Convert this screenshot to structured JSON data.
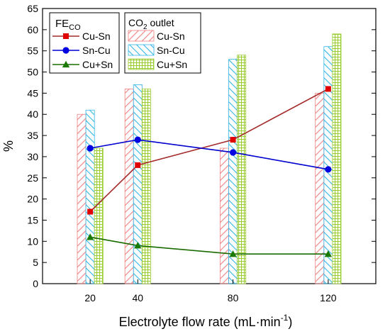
{
  "chart_data": {
    "type": "bar",
    "xlabel_main": "Electrolyte flow rate (mL·min",
    "xlabel_sup": "-1",
    "xlabel_close": ")",
    "ylabel": "%",
    "xlim": [
      0,
      140
    ],
    "ylim": [
      0,
      65
    ],
    "yticks": [
      0,
      5,
      10,
      15,
      20,
      25,
      30,
      35,
      40,
      45,
      50,
      55,
      60,
      65
    ],
    "categories": [
      "20",
      "40",
      "80",
      "120"
    ],
    "x": [
      20,
      40,
      80,
      120
    ],
    "bar_legend_title": {
      "pre": "CO",
      "sub": "2",
      "post": " outlet"
    },
    "line_legend_title": {
      "main": "FE",
      "sub": "CO"
    },
    "bar_series": [
      {
        "name": "Cu-Sn",
        "color": "#f08080",
        "pattern": "right-diagonal-hatch",
        "values": [
          40,
          46,
          32,
          45
        ]
      },
      {
        "name": "Sn-Cu",
        "color": "#33b5e5",
        "pattern": "left-diagonal-hatch",
        "values": [
          41,
          47,
          53,
          56
        ]
      },
      {
        "name": "Cu+Sn",
        "color": "#9acd32",
        "pattern": "crosshatch",
        "values": [
          32,
          46,
          54,
          59
        ]
      }
    ],
    "line_series": [
      {
        "name": "Cu-Sn",
        "color": "#a52a2a",
        "marker_color": "#e00000",
        "marker": "square",
        "values": [
          17,
          28,
          34,
          46
        ]
      },
      {
        "name": "Sn-Cu",
        "color": "#0000d0",
        "marker_color": "#0000e0",
        "marker": "circle",
        "values": [
          32,
          34,
          31,
          27
        ]
      },
      {
        "name": "Cu+Sn",
        "color": "#1a6b00",
        "marker_color": "#1a7a00",
        "marker": "triangle",
        "values": [
          11,
          9,
          7,
          7
        ]
      }
    ]
  }
}
